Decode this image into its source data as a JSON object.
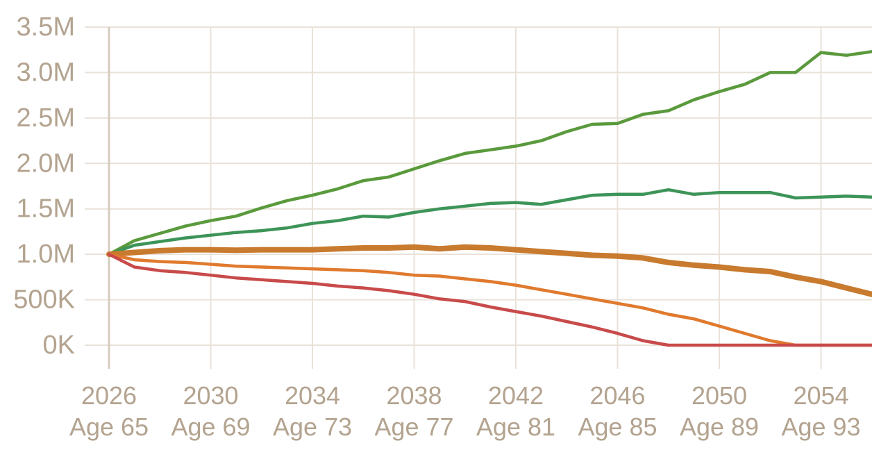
{
  "chart_data": {
    "type": "line",
    "title": "",
    "xlabel": "",
    "ylabel": "",
    "x_domain": [
      2026,
      2056
    ],
    "ylim": [
      0,
      3500000
    ],
    "grid": true,
    "y_ticks": [
      {
        "value": 0,
        "label": "0K"
      },
      {
        "value": 500000,
        "label": "500K"
      },
      {
        "value": 1000000,
        "label": "1.0M"
      },
      {
        "value": 1500000,
        "label": "1.5M"
      },
      {
        "value": 2000000,
        "label": "2.0M"
      },
      {
        "value": 2500000,
        "label": "2.5M"
      },
      {
        "value": 3000000,
        "label": "3.0M"
      },
      {
        "value": 3500000,
        "label": "3.5M"
      }
    ],
    "x_ticks": [
      {
        "value": 2026,
        "year": "2026",
        "age": "Age 65"
      },
      {
        "value": 2030,
        "year": "2030",
        "age": "Age 69"
      },
      {
        "value": 2034,
        "year": "2034",
        "age": "Age 73"
      },
      {
        "value": 2038,
        "year": "2038",
        "age": "Age 77"
      },
      {
        "value": 2042,
        "year": "2042",
        "age": "Age 81"
      },
      {
        "value": 2046,
        "year": "2046",
        "age": "Age 85"
      },
      {
        "value": 2050,
        "year": "2050",
        "age": "Age 89"
      },
      {
        "value": 2054,
        "year": "2054",
        "age": "Age 93"
      }
    ],
    "x": [
      2026,
      2027,
      2028,
      2029,
      2030,
      2031,
      2032,
      2033,
      2034,
      2035,
      2036,
      2037,
      2038,
      2039,
      2040,
      2041,
      2042,
      2043,
      2044,
      2045,
      2046,
      2047,
      2048,
      2049,
      2050,
      2051,
      2052,
      2053,
      2054,
      2055,
      2056
    ],
    "series": [
      {
        "color": "#5a9a3c",
        "emphasis": false,
        "values": [
          1000000,
          1150000,
          1230000,
          1310000,
          1370000,
          1420000,
          1510000,
          1590000,
          1650000,
          1720000,
          1810000,
          1850000,
          1940000,
          2030000,
          2110000,
          2150000,
          2190000,
          2250000,
          2350000,
          2430000,
          2440000,
          2540000,
          2580000,
          2700000,
          2790000,
          2870000,
          3000000,
          3000000,
          3220000,
          3190000,
          3230000
        ]
      },
      {
        "color": "#3d9458",
        "emphasis": false,
        "values": [
          1000000,
          1100000,
          1140000,
          1180000,
          1210000,
          1240000,
          1260000,
          1290000,
          1340000,
          1370000,
          1420000,
          1410000,
          1460000,
          1500000,
          1530000,
          1560000,
          1570000,
          1550000,
          1600000,
          1650000,
          1660000,
          1660000,
          1710000,
          1660000,
          1680000,
          1680000,
          1680000,
          1620000,
          1630000,
          1640000,
          1630000
        ]
      },
      {
        "color": "#c87a2e",
        "emphasis": true,
        "values": [
          1000000,
          1020000,
          1040000,
          1050000,
          1050000,
          1045000,
          1050000,
          1050000,
          1050000,
          1060000,
          1070000,
          1070000,
          1080000,
          1060000,
          1080000,
          1070000,
          1050000,
          1030000,
          1010000,
          990000,
          980000,
          960000,
          910000,
          880000,
          860000,
          830000,
          810000,
          750000,
          700000,
          630000,
          560000
        ]
      },
      {
        "color": "#e07a2e",
        "emphasis": false,
        "values": [
          1000000,
          940000,
          920000,
          910000,
          890000,
          870000,
          860000,
          850000,
          840000,
          830000,
          820000,
          800000,
          770000,
          760000,
          730000,
          700000,
          660000,
          610000,
          560000,
          510000,
          460000,
          410000,
          340000,
          290000,
          210000,
          130000,
          50000,
          0,
          0,
          0,
          0
        ]
      },
      {
        "color": "#c84a4a",
        "emphasis": false,
        "values": [
          1000000,
          860000,
          820000,
          800000,
          770000,
          740000,
          720000,
          700000,
          680000,
          650000,
          630000,
          600000,
          560000,
          510000,
          480000,
          420000,
          370000,
          320000,
          260000,
          200000,
          130000,
          50000,
          0,
          0,
          0,
          0,
          0,
          0,
          0,
          0,
          0
        ]
      }
    ],
    "colors": {
      "grid": "#e9e2d9",
      "axis": "#d6ccbf",
      "tick_text": "#b3a38f"
    }
  }
}
